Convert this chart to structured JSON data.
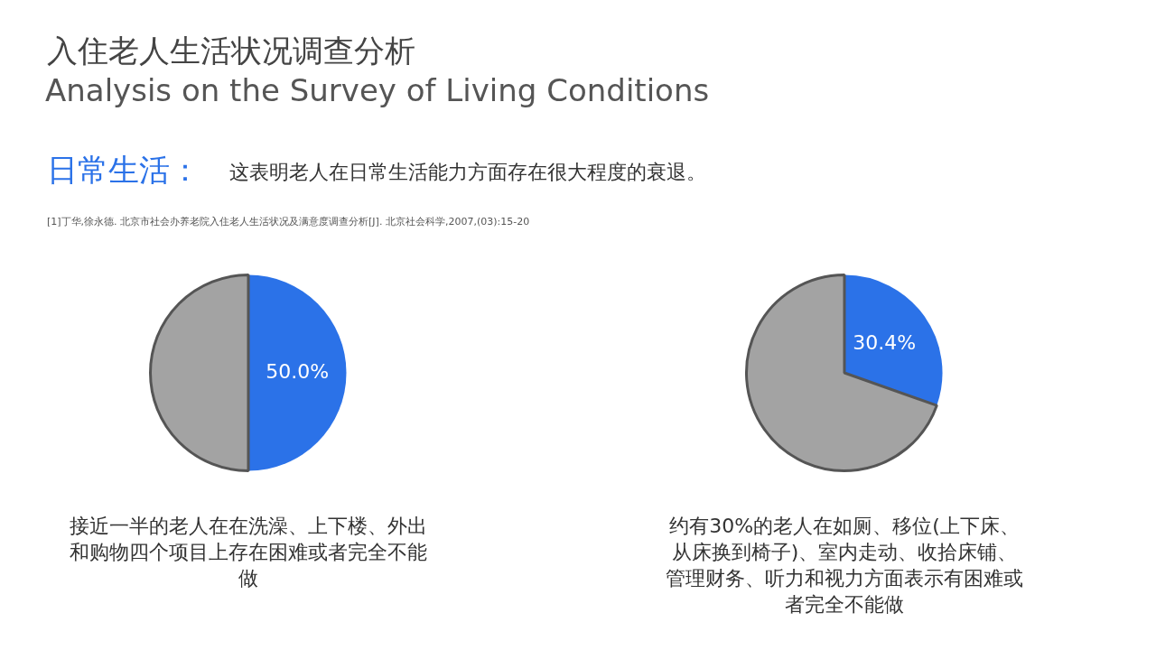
{
  "chart_data": [
    {
      "type": "pie",
      "title": "入住老人生活状况调查分析",
      "subtitle": "Analysis on the Survey of Living Conditions",
      "categories": [
        null,
        null
      ],
      "values": [
        50.0,
        50.0
      ],
      "colors": [
        "#2b72e8",
        "#a3a3a3"
      ],
      "value_labels": [
        "50.0%",
        null
      ],
      "legend": false,
      "annotations": [
        "日常生活：",
        "这表明老人在日常生活能力方面存在很大程度的衰退。",
        "[1]丁华,徐永德. 北京市社会办养老院入住老人生活状况及满意度调查分析[J]. 北京社会科学,2007,(03):15-20",
        "接近一半的老人在在洗澡、上下楼、外出和购物四个项目上存在困难或者完全不能做"
      ]
    },
    {
      "type": "pie",
      "categories": [
        null,
        null
      ],
      "values": [
        30.4,
        69.6
      ],
      "colors": [
        "#2b72e8",
        "#a3a3a3"
      ],
      "value_labels": [
        "30.4%",
        null
      ],
      "legend": false,
      "annotations": [
        "约有30%的老人在如厕、移位(上下床、从床换到椅子)、室内走动、收拾床铺、管理财务、听力和视力方面表示有困难或者完全不能做"
      ]
    }
  ]
}
